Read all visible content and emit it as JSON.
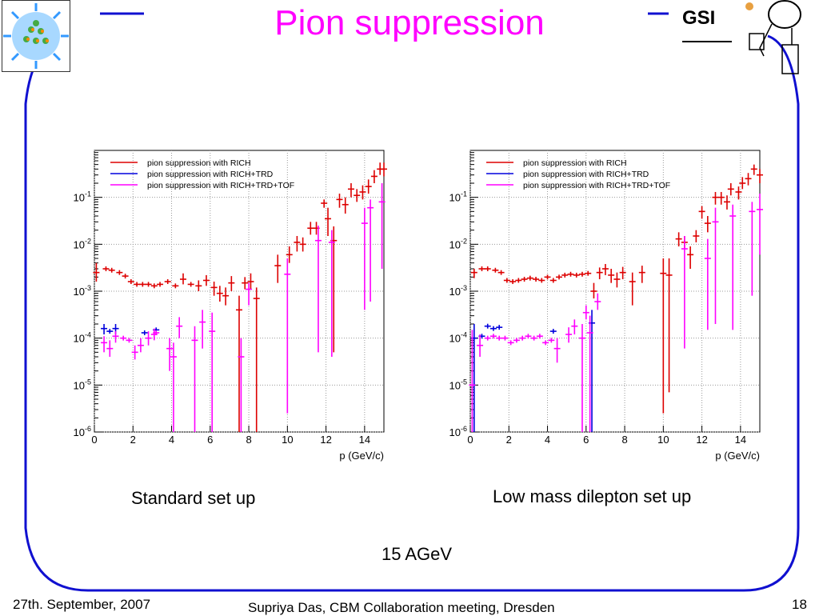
{
  "slide": {
    "title": "Pion suppression",
    "energy_label": "15 AGeV",
    "footer_date": "27th. September, 2007",
    "footer_center": "Supriya Das, CBM Collaboration meeting, Dresden",
    "page_number": "18",
    "logo_left_icon": "nucleus-collision-icon",
    "logo_right_text": "GSI",
    "logo_right_icon": "gsi-logo-icon",
    "colors": {
      "title": "#ff00ff",
      "frame": "#1010d0",
      "rich": "#dd0000",
      "trd": "#0000dd",
      "tof": "#ff00ff"
    }
  },
  "chart_data": [
    {
      "type": "scatter",
      "caption": "Standard set up",
      "xlabel": "p (GeV/c)",
      "ylabel": "",
      "xlim": [
        0,
        15
      ],
      "ylim_log10": [
        -6,
        0
      ],
      "y_scale": "log",
      "x_ticks": [
        "0",
        "2",
        "4",
        "6",
        "8",
        "10",
        "12",
        "14"
      ],
      "y_ticks": [
        "10^-6",
        "10^-5",
        "10^-4",
        "10^-3",
        "10^-2",
        "10^-1"
      ],
      "grid": true,
      "legend_position": "top-left",
      "series": [
        {
          "name": "pion suppression with RICH",
          "color": "#dd0000",
          "points": [
            {
              "x": 0.1,
              "y": 0.0025,
              "lo": 0.0016,
              "hi": 0.004
            },
            {
              "x": 0.6,
              "y": 0.003
            },
            {
              "x": 0.9,
              "y": 0.0028
            },
            {
              "x": 1.3,
              "y": 0.0025
            },
            {
              "x": 1.6,
              "y": 0.0021
            },
            {
              "x": 1.9,
              "y": 0.0016
            },
            {
              "x": 2.2,
              "y": 0.0014
            },
            {
              "x": 2.5,
              "y": 0.0014
            },
            {
              "x": 2.8,
              "y": 0.0014
            },
            {
              "x": 3.1,
              "y": 0.0013
            },
            {
              "x": 3.4,
              "y": 0.0014
            },
            {
              "x": 3.8,
              "y": 0.0016
            },
            {
              "x": 4.2,
              "y": 0.0013
            },
            {
              "x": 4.6,
              "y": 0.0018,
              "lo": 0.0014,
              "hi": 0.0024
            },
            {
              "x": 5.0,
              "y": 0.0014
            },
            {
              "x": 5.4,
              "y": 0.0013,
              "lo": 0.001,
              "hi": 0.0017
            },
            {
              "x": 5.8,
              "y": 0.0017,
              "lo": 0.0013,
              "hi": 0.0022
            },
            {
              "x": 6.2,
              "y": 0.0012,
              "lo": 0.0008,
              "hi": 0.0016
            },
            {
              "x": 6.5,
              "y": 0.0009,
              "lo": 0.0006,
              "hi": 0.0013
            },
            {
              "x": 6.8,
              "y": 0.0008,
              "lo": 0.0005,
              "hi": 0.0012
            },
            {
              "x": 7.1,
              "y": 0.0015,
              "lo": 0.001,
              "hi": 0.0021
            },
            {
              "x": 7.5,
              "y": 0.0004,
              "lo": 1e-06,
              "hi": 0.0008
            },
            {
              "x": 7.8,
              "y": 0.0015,
              "lo": 0.0011,
              "hi": 0.002
            },
            {
              "x": 8.1,
              "y": 0.0016,
              "lo": 0.0011,
              "hi": 0.0024
            },
            {
              "x": 8.4,
              "y": 0.0007,
              "lo": 1e-06,
              "hi": 0.0012
            },
            {
              "x": 9.5,
              "y": 0.0035,
              "lo": 0.0015,
              "hi": 0.006
            },
            {
              "x": 10.1,
              "y": 0.006,
              "lo": 0.004,
              "hi": 0.009
            },
            {
              "x": 10.5,
              "y": 0.011,
              "lo": 0.007,
              "hi": 0.015
            },
            {
              "x": 10.8,
              "y": 0.01,
              "lo": 0.007,
              "hi": 0.014
            },
            {
              "x": 11.2,
              "y": 0.022,
              "lo": 0.016,
              "hi": 0.03
            },
            {
              "x": 11.5,
              "y": 0.022,
              "lo": 0.016,
              "hi": 0.03
            },
            {
              "x": 11.9,
              "y": 0.075,
              "lo": 0.06,
              "hi": 0.09
            },
            {
              "x": 12.1,
              "y": 0.035,
              "lo": 0.015,
              "hi": 0.06
            },
            {
              "x": 12.4,
              "y": 0.012,
              "lo": 5e-05,
              "hi": 0.024
            },
            {
              "x": 12.7,
              "y": 0.09,
              "lo": 0.06,
              "hi": 0.12
            },
            {
              "x": 13.0,
              "y": 0.07,
              "lo": 0.045,
              "hi": 0.1
            },
            {
              "x": 13.3,
              "y": 0.15,
              "lo": 0.1,
              "hi": 0.2
            },
            {
              "x": 13.6,
              "y": 0.11,
              "lo": 0.08,
              "hi": 0.15
            },
            {
              "x": 13.9,
              "y": 0.13,
              "lo": 0.09,
              "hi": 0.18
            },
            {
              "x": 14.2,
              "y": 0.17,
              "lo": 0.12,
              "hi": 0.24
            },
            {
              "x": 14.5,
              "y": 0.28,
              "lo": 0.2,
              "hi": 0.38
            },
            {
              "x": 14.8,
              "y": 0.4,
              "lo": 0.3,
              "hi": 0.55
            },
            {
              "x": 15.0,
              "y": 0.4,
              "lo": 0.28,
              "hi": 0.55
            }
          ]
        },
        {
          "name": "pion suppression with RICH+TRD",
          "color": "#0000dd",
          "points": [
            {
              "x": 0.5,
              "y": 0.00016,
              "lo": 0.00012,
              "hi": 0.0002
            },
            {
              "x": 0.8,
              "y": 0.00014
            },
            {
              "x": 1.1,
              "y": 0.00016,
              "lo": 0.00012,
              "hi": 0.0002
            },
            {
              "x": 2.6,
              "y": 0.00013
            },
            {
              "x": 3.2,
              "y": 0.00015
            }
          ]
        },
        {
          "name": "pion suppression with RICH+TRD+TOF",
          "color": "#ff00ff",
          "points": [
            {
              "x": 0.5,
              "y": 8e-05,
              "lo": 5e-05,
              "hi": 0.00011
            },
            {
              "x": 0.8,
              "y": 6e-05,
              "lo": 4e-05,
              "hi": 9e-05
            },
            {
              "x": 1.1,
              "y": 0.00011,
              "lo": 8e-05,
              "hi": 0.00014
            },
            {
              "x": 1.5,
              "y": 0.0001
            },
            {
              "x": 1.8,
              "y": 9e-05
            },
            {
              "x": 2.1,
              "y": 5e-05,
              "lo": 3.5e-05,
              "hi": 7e-05
            },
            {
              "x": 2.4,
              "y": 7e-05,
              "lo": 5e-05,
              "hi": 0.0001
            },
            {
              "x": 2.8,
              "y": 0.0001,
              "lo": 7e-05,
              "hi": 0.00014
            },
            {
              "x": 3.1,
              "y": 0.00012,
              "lo": 9e-05,
              "hi": 0.00016
            },
            {
              "x": 3.2,
              "y": 0.00013
            },
            {
              "x": 3.9,
              "y": 6e-05,
              "lo": 2e-05,
              "hi": 0.0001
            },
            {
              "x": 4.1,
              "y": 4e-05,
              "lo": 1e-06,
              "hi": 8e-05
            },
            {
              "x": 4.4,
              "y": 0.00018,
              "lo": 0.0001,
              "hi": 0.00028
            },
            {
              "x": 5.2,
              "y": 9e-05,
              "lo": 1e-06,
              "hi": 0.00018
            },
            {
              "x": 5.6,
              "y": 0.00022,
              "lo": 6e-05,
              "hi": 0.0004
            },
            {
              "x": 6.1,
              "y": 0.00014,
              "lo": 1e-06,
              "hi": 0.00035
            },
            {
              "x": 7.6,
              "y": 4e-05,
              "lo": 1e-06,
              "hi": 0.0001
            },
            {
              "x": 8.0,
              "y": 0.0011,
              "lo": 0.0005,
              "hi": 0.0015
            },
            {
              "x": 10.0,
              "y": 0.0023,
              "lo": 2.5e-06,
              "hi": 0.005
            },
            {
              "x": 11.6,
              "y": 0.012,
              "lo": 5e-05,
              "hi": 0.025
            },
            {
              "x": 12.3,
              "y": 0.011,
              "lo": 4e-05,
              "hi": 0.02
            },
            {
              "x": 14.0,
              "y": 0.028,
              "lo": 0.0004,
              "hi": 0.06
            },
            {
              "x": 14.3,
              "y": 0.06,
              "lo": 0.0006,
              "hi": 0.09
            },
            {
              "x": 14.9,
              "y": 0.08,
              "lo": 0.003,
              "hi": 0.2
            }
          ]
        }
      ]
    },
    {
      "type": "scatter",
      "caption": "Low mass dilepton set up",
      "xlabel": "p (GeV/c)",
      "ylabel": "",
      "xlim": [
        0,
        15
      ],
      "ylim_log10": [
        -6,
        0
      ],
      "y_scale": "log",
      "x_ticks": [
        "0",
        "2",
        "4",
        "6",
        "8",
        "10",
        "12",
        "14"
      ],
      "y_ticks": [
        "10^-6",
        "10^-5",
        "10^-4",
        "10^-3",
        "10^-2",
        "10^-1"
      ],
      "grid": true,
      "legend_position": "top-left",
      "series": [
        {
          "name": "pion suppression with RICH",
          "color": "#dd0000",
          "points": [
            {
              "x": 0.2,
              "y": 0.0025,
              "lo": 0.0019,
              "hi": 0.003
            },
            {
              "x": 0.6,
              "y": 0.003
            },
            {
              "x": 0.9,
              "y": 0.003
            },
            {
              "x": 1.3,
              "y": 0.0028
            },
            {
              "x": 1.6,
              "y": 0.0025
            },
            {
              "x": 1.9,
              "y": 0.0017
            },
            {
              "x": 2.2,
              "y": 0.0016
            },
            {
              "x": 2.5,
              "y": 0.0017
            },
            {
              "x": 2.8,
              "y": 0.0018
            },
            {
              "x": 3.1,
              "y": 0.0019
            },
            {
              "x": 3.4,
              "y": 0.0018
            },
            {
              "x": 3.7,
              "y": 0.0017
            },
            {
              "x": 4.0,
              "y": 0.002
            },
            {
              "x": 4.3,
              "y": 0.0017
            },
            {
              "x": 4.6,
              "y": 0.002
            },
            {
              "x": 4.9,
              "y": 0.0022
            },
            {
              "x": 5.2,
              "y": 0.0023
            },
            {
              "x": 5.5,
              "y": 0.0022
            },
            {
              "x": 5.8,
              "y": 0.0023
            },
            {
              "x": 6.1,
              "y": 0.0024
            },
            {
              "x": 6.4,
              "y": 0.001,
              "lo": 0.0007,
              "hi": 0.0015
            },
            {
              "x": 6.7,
              "y": 0.0025,
              "lo": 0.0018,
              "hi": 0.0032
            },
            {
              "x": 7.0,
              "y": 0.003,
              "lo": 0.0022,
              "hi": 0.0038
            },
            {
              "x": 7.3,
              "y": 0.0022,
              "lo": 0.0015,
              "hi": 0.003
            },
            {
              "x": 7.6,
              "y": 0.0018,
              "lo": 0.0012,
              "hi": 0.0025
            },
            {
              "x": 7.9,
              "y": 0.0025,
              "lo": 0.0018,
              "hi": 0.0033
            },
            {
              "x": 8.4,
              "y": 0.0016,
              "lo": 0.0005,
              "hi": 0.0025
            },
            {
              "x": 8.9,
              "y": 0.0025,
              "lo": 0.0015,
              "hi": 0.0035
            },
            {
              "x": 10.0,
              "y": 0.0024,
              "lo": 2.5e-06,
              "hi": 0.005
            },
            {
              "x": 10.3,
              "y": 0.0022,
              "lo": 7e-06,
              "hi": 0.005
            },
            {
              "x": 10.8,
              "y": 0.013,
              "lo": 0.009,
              "hi": 0.018
            },
            {
              "x": 11.1,
              "y": 0.011,
              "lo": 0.008,
              "hi": 0.015
            },
            {
              "x": 11.4,
              "y": 0.006,
              "lo": 0.003,
              "hi": 0.009
            },
            {
              "x": 11.7,
              "y": 0.015,
              "lo": 0.011,
              "hi": 0.02
            },
            {
              "x": 12.0,
              "y": 0.05,
              "lo": 0.035,
              "hi": 0.065
            },
            {
              "x": 12.3,
              "y": 0.028,
              "lo": 0.018,
              "hi": 0.04
            },
            {
              "x": 12.7,
              "y": 0.1,
              "lo": 0.07,
              "hi": 0.13
            },
            {
              "x": 13.0,
              "y": 0.1,
              "lo": 0.07,
              "hi": 0.13
            },
            {
              "x": 13.3,
              "y": 0.08,
              "lo": 0.055,
              "hi": 0.11
            },
            {
              "x": 13.5,
              "y": 0.15,
              "lo": 0.11,
              "hi": 0.2
            },
            {
              "x": 13.9,
              "y": 0.13,
              "lo": 0.09,
              "hi": 0.17
            },
            {
              "x": 14.1,
              "y": 0.2,
              "lo": 0.15,
              "hi": 0.27
            },
            {
              "x": 14.4,
              "y": 0.25,
              "lo": 0.18,
              "hi": 0.33
            },
            {
              "x": 14.7,
              "y": 0.4,
              "lo": 0.3,
              "hi": 0.5
            },
            {
              "x": 15.0,
              "y": 0.3,
              "lo": 0.2,
              "hi": 0.4
            }
          ]
        },
        {
          "name": "pion suppression with RICH+TRD",
          "color": "#0000dd",
          "points": [
            {
              "x": 0.2,
              "y": 0.0001,
              "lo": 1e-06,
              "hi": 0.0002
            },
            {
              "x": 0.6,
              "y": 0.00011
            },
            {
              "x": 0.9,
              "y": 0.00018
            },
            {
              "x": 1.2,
              "y": 0.00016
            },
            {
              "x": 1.5,
              "y": 0.00017
            },
            {
              "x": 4.3,
              "y": 0.00014
            },
            {
              "x": 6.3,
              "y": 0.00021,
              "lo": 1e-06,
              "hi": 0.0004
            }
          ]
        },
        {
          "name": "pion suppression with RICH+TRD+TOF",
          "color": "#ff00ff",
          "points": [
            {
              "x": 0.1,
              "y": 1e-05,
              "lo": 1e-06,
              "hi": 0.00015
            },
            {
              "x": 0.5,
              "y": 7e-05,
              "lo": 4e-05,
              "hi": 0.00012
            },
            {
              "x": 0.9,
              "y": 0.0001
            },
            {
              "x": 1.2,
              "y": 0.00011
            },
            {
              "x": 1.5,
              "y": 0.0001
            },
            {
              "x": 1.8,
              "y": 0.0001
            },
            {
              "x": 2.1,
              "y": 8e-05
            },
            {
              "x": 2.4,
              "y": 9e-05
            },
            {
              "x": 2.7,
              "y": 0.0001
            },
            {
              "x": 3.0,
              "y": 0.00011
            },
            {
              "x": 3.3,
              "y": 0.0001
            },
            {
              "x": 3.6,
              "y": 0.00011
            },
            {
              "x": 3.9,
              "y": 8e-05
            },
            {
              "x": 4.2,
              "y": 9e-05
            },
            {
              "x": 4.5,
              "y": 6e-05,
              "lo": 3e-05,
              "hi": 0.0001
            },
            {
              "x": 5.1,
              "y": 0.00012,
              "lo": 8e-05,
              "hi": 0.00017
            },
            {
              "x": 5.4,
              "y": 0.00018,
              "lo": 0.00012,
              "hi": 0.00025
            },
            {
              "x": 6.0,
              "y": 0.00035,
              "lo": 0.00025,
              "hi": 0.0005
            },
            {
              "x": 5.8,
              "y": 0.0001,
              "lo": 1e-06,
              "hi": 0.0002
            },
            {
              "x": 6.2,
              "y": 0.00013,
              "lo": 1e-06,
              "hi": 0.0003
            },
            {
              "x": 6.6,
              "y": 0.0006,
              "lo": 0.0004,
              "hi": 0.0009
            },
            {
              "x": 11.1,
              "y": 0.008,
              "lo": 6e-05,
              "hi": 0.015
            },
            {
              "x": 12.3,
              "y": 0.005,
              "lo": 0.00015,
              "hi": 0.013
            },
            {
              "x": 12.7,
              "y": 0.03,
              "lo": 0.0002,
              "hi": 0.06
            },
            {
              "x": 13.6,
              "y": 0.04,
              "lo": 0.00015,
              "hi": 0.07
            },
            {
              "x": 14.6,
              "y": 0.05,
              "lo": 0.0008,
              "hi": 0.08
            },
            {
              "x": 15.0,
              "y": 0.055,
              "lo": 0.006,
              "hi": 0.12
            }
          ]
        }
      ]
    }
  ]
}
